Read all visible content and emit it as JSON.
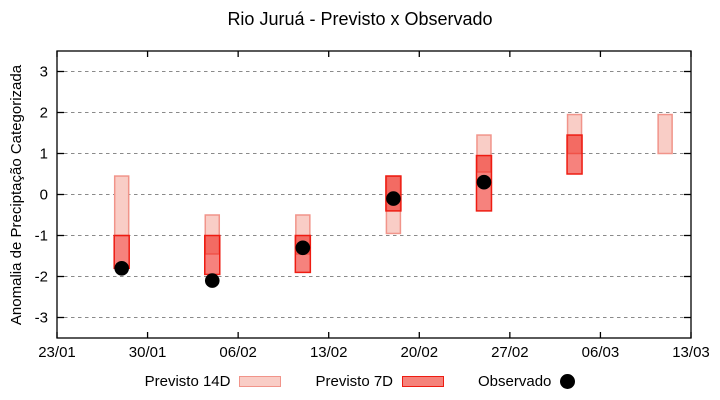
{
  "chart_data": {
    "type": "bar",
    "subtype": "forecast-range-bars-with-observations",
    "title": "Rio Juruá - Previsto x Observado",
    "ylabel": "Anomalia de Preciptação Categorizada",
    "xlabel": "",
    "ylim": [
      -3.5,
      3.5
    ],
    "yticks": [
      3,
      2,
      1,
      0,
      -1,
      -2,
      -3
    ],
    "xlim_days": [
      0,
      49
    ],
    "xticks": [
      {
        "label": "23/01",
        "day": 0
      },
      {
        "label": "30/01",
        "day": 7
      },
      {
        "label": "06/02",
        "day": 14
      },
      {
        "label": "13/02",
        "day": 21
      },
      {
        "label": "20/02",
        "day": 28
      },
      {
        "label": "27/02",
        "day": 35
      },
      {
        "label": "06/03",
        "day": 42
      },
      {
        "label": "13/03",
        "day": 49
      }
    ],
    "grid": "horizontal-dashed",
    "grid_color": "#8a8a8a",
    "legend_position": "bottom",
    "series": [
      {
        "name": "Previsto 14D",
        "kind": "range-bar",
        "fill": "#f9cdc6",
        "stroke": "#f1948a",
        "bars": [
          {
            "date": "28/01",
            "day": 5,
            "low": -1.0,
            "high": 0.45
          },
          {
            "date": "04/02",
            "day": 12,
            "low": -1.45,
            "high": -0.5
          },
          {
            "date": "11/02",
            "day": 19,
            "low": -1.45,
            "high": -0.5
          },
          {
            "date": "18/02",
            "day": 26,
            "low": -0.95,
            "high": 0.45
          },
          {
            "date": "25/02",
            "day": 33,
            "low": 0.55,
            "high": 1.45
          },
          {
            "date": "04/03",
            "day": 40,
            "low": 1.0,
            "high": 1.95
          },
          {
            "date": "11/03",
            "day": 47,
            "low": 1.0,
            "high": 1.95
          }
        ]
      },
      {
        "name": "Previsto 7D",
        "kind": "range-bar",
        "fill": "#ee1c12",
        "fill_opacity": 0.55,
        "stroke": "#ee1c12",
        "bars": [
          {
            "date": "28/01",
            "day": 5,
            "low": -1.8,
            "high": -1.0
          },
          {
            "date": "04/02",
            "day": 12,
            "low": -1.95,
            "high": -1.0
          },
          {
            "date": "11/02",
            "day": 19,
            "low": -1.9,
            "high": -1.0
          },
          {
            "date": "18/02",
            "day": 26,
            "low": -0.4,
            "high": 0.45
          },
          {
            "date": "25/02",
            "day": 33,
            "low": -0.4,
            "high": 0.95
          },
          {
            "date": "04/03",
            "day": 40,
            "low": 0.5,
            "high": 1.45
          }
        ]
      },
      {
        "name": "Observado",
        "kind": "scatter",
        "fill": "#000000",
        "points": [
          {
            "date": "28/01",
            "day": 5,
            "value": -1.8
          },
          {
            "date": "04/02",
            "day": 12,
            "value": -2.1
          },
          {
            "date": "11/02",
            "day": 19,
            "value": -1.3
          },
          {
            "date": "18/02",
            "day": 26,
            "value": -0.1
          },
          {
            "date": "25/02",
            "day": 33,
            "value": 0.3
          }
        ]
      }
    ]
  }
}
